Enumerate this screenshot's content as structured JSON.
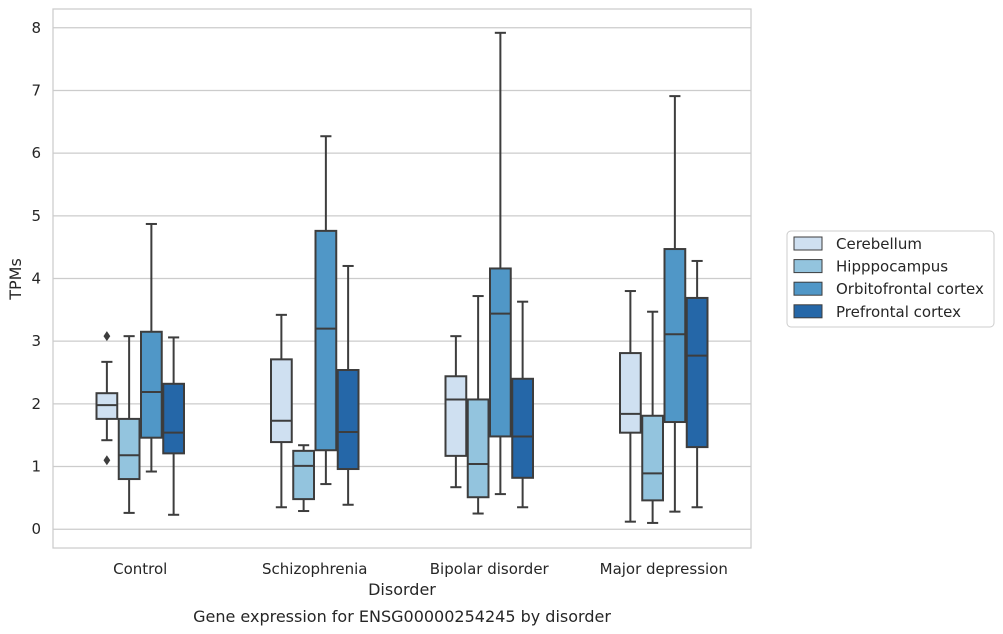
{
  "chart_data": {
    "type": "box",
    "title": "Gene expression for ENSG00000254245 by disorder",
    "xlabel": "Disorder",
    "ylabel": "TPMs",
    "ylim": [
      -0.3,
      8.3
    ],
    "yticks": [
      0,
      1,
      2,
      3,
      4,
      5,
      6,
      7,
      8
    ],
    "grid": true,
    "legend_position": "right",
    "categories": [
      "Control",
      "Schizophrenia",
      "Bipolar disorder",
      "Major depression"
    ],
    "series": [
      {
        "name": "Cerebellum",
        "color": "#cfe0f1",
        "boxes": [
          {
            "whisker_low": 1.42,
            "q1": 1.76,
            "median": 1.98,
            "q3": 2.17,
            "whisker_high": 2.67,
            "outliers": [
              3.08,
              1.1
            ]
          },
          {
            "whisker_low": 0.35,
            "q1": 1.39,
            "median": 1.73,
            "q3": 2.71,
            "whisker_high": 3.42,
            "outliers": []
          },
          {
            "whisker_low": 0.67,
            "q1": 1.17,
            "median": 2.07,
            "q3": 2.44,
            "whisker_high": 3.08,
            "outliers": []
          },
          {
            "whisker_low": 0.12,
            "q1": 1.54,
            "median": 1.84,
            "q3": 2.81,
            "whisker_high": 3.8,
            "outliers": []
          }
        ]
      },
      {
        "name": "Hipppocampus",
        "color": "#93c4de",
        "boxes": [
          {
            "whisker_low": 0.26,
            "q1": 0.8,
            "median": 1.18,
            "q3": 1.76,
            "whisker_high": 3.08,
            "outliers": []
          },
          {
            "whisker_low": 0.29,
            "q1": 0.48,
            "median": 1.01,
            "q3": 1.25,
            "whisker_high": 1.34,
            "outliers": []
          },
          {
            "whisker_low": 0.25,
            "q1": 0.51,
            "median": 1.04,
            "q3": 2.07,
            "whisker_high": 3.72,
            "outliers": []
          },
          {
            "whisker_low": 0.1,
            "q1": 0.46,
            "median": 0.89,
            "q3": 1.81,
            "whisker_high": 3.47,
            "outliers": []
          }
        ]
      },
      {
        "name": "Orbitofrontal cortex",
        "color": "#5097c7",
        "boxes": [
          {
            "whisker_low": 0.92,
            "q1": 1.46,
            "median": 2.19,
            "q3": 3.15,
            "whisker_high": 4.87,
            "outliers": []
          },
          {
            "whisker_low": 0.72,
            "q1": 1.26,
            "median": 3.2,
            "q3": 4.76,
            "whisker_high": 6.27,
            "outliers": []
          },
          {
            "whisker_low": 0.56,
            "q1": 1.48,
            "median": 3.44,
            "q3": 4.16,
            "whisker_high": 7.92,
            "outliers": []
          },
          {
            "whisker_low": 0.28,
            "q1": 1.71,
            "median": 3.11,
            "q3": 4.47,
            "whisker_high": 6.91,
            "outliers": []
          }
        ]
      },
      {
        "name": "Prefrontal cortex",
        "color": "#2567a8",
        "boxes": [
          {
            "whisker_low": 0.23,
            "q1": 1.21,
            "median": 1.54,
            "q3": 2.32,
            "whisker_high": 3.06,
            "outliers": []
          },
          {
            "whisker_low": 0.39,
            "q1": 0.96,
            "median": 1.55,
            "q3": 2.54,
            "whisker_high": 4.2,
            "outliers": []
          },
          {
            "whisker_low": 0.35,
            "q1": 0.82,
            "median": 1.48,
            "q3": 2.4,
            "whisker_high": 3.63,
            "outliers": []
          },
          {
            "whisker_low": 0.35,
            "q1": 1.31,
            "median": 2.77,
            "q3": 3.69,
            "whisker_high": 4.28,
            "outliers": []
          }
        ]
      }
    ]
  }
}
